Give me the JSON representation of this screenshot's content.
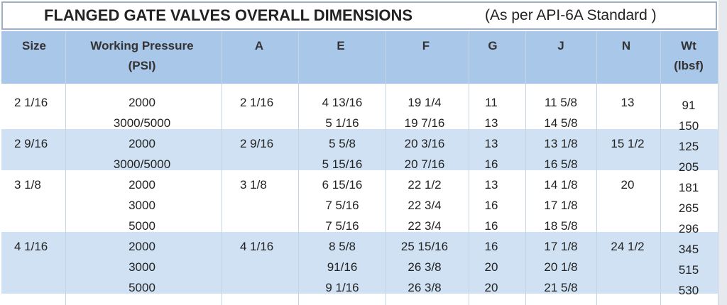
{
  "title": {
    "main": "FLANGED GATE VALVES OVERALL DIMENSIONS",
    "note": "(As per API-6A Standard )"
  },
  "table": {
    "headers": [
      [
        "Size"
      ],
      [
        "Working Pressure",
        "(PSI)"
      ],
      [
        "A"
      ],
      [
        "E"
      ],
      [
        "F"
      ],
      [
        "G"
      ],
      [
        "J"
      ],
      [
        "N"
      ],
      [
        "Wt",
        "(lbsf)"
      ]
    ],
    "groups": [
      {
        "size": "2 1/16",
        "a": "2 1/16",
        "n": "13",
        "rows": [
          [
            "2000",
            "4 13/16",
            "19 1/4",
            "11",
            "11 5/8",
            "91"
          ],
          [
            "3000/5000",
            "5 1/16",
            "19 7/16",
            "13",
            "14 5/8",
            "150"
          ]
        ]
      },
      {
        "size": "2 9/16",
        "a": "2 9/16",
        "n": "15 1/2",
        "rows": [
          [
            "2000",
            "5 5/8",
            "20 3/16",
            "13",
            "13 1/8",
            "125"
          ],
          [
            "3000/5000",
            "5 15/16",
            "20 7/16",
            "16",
            "16 5/8",
            "205"
          ]
        ]
      },
      {
        "size": "3 1/8",
        "a": "3 1/8",
        "n": "20",
        "rows": [
          [
            "2000",
            "6 15/16",
            "22 1/2",
            "13",
            "14 1/8",
            "181"
          ],
          [
            "3000",
            "7 5/16",
            "22 3/4",
            "16",
            "17 1/8",
            "265"
          ],
          [
            "5000",
            "7 5/16",
            "22 3/4",
            "16",
            "18 5/8",
            "296"
          ]
        ]
      },
      {
        "size": "4 1/16",
        "a": "4 1/16",
        "n": "24 1/2",
        "rows": [
          [
            "2000",
            "8 5/8",
            "25 15/16",
            "16",
            "17 1/8",
            "345"
          ],
          [
            "3000",
            "91/16",
            "26 3/8",
            "20",
            "20 1/8",
            "515"
          ],
          [
            "5000",
            "9 1/16",
            "26 3/8",
            "20",
            "21 5/8",
            "530"
          ]
        ]
      }
    ]
  }
}
